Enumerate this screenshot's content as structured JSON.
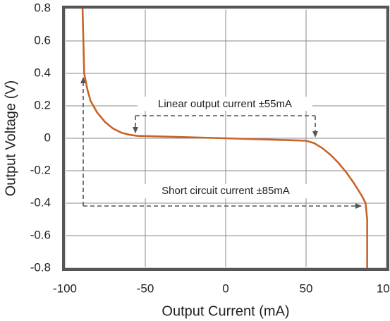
{
  "chart_data": {
    "type": "line",
    "x_label": "Output Current (mA)",
    "y_label": "Output Voltage (V)",
    "series": [
      {
        "color": "#c8642a",
        "x": [
          -89,
          -88,
          -86,
          -84,
          -80,
          -75,
          -70,
          -65,
          -60,
          -55,
          0,
          50,
          55,
          60,
          65,
          70,
          75,
          80,
          85,
          87,
          88,
          88
        ],
        "values": [
          0.8,
          0.4,
          0.3,
          0.23,
          0.16,
          0.1,
          0.06,
          0.035,
          0.022,
          0.015,
          0,
          -0.015,
          -0.03,
          -0.06,
          -0.1,
          -0.15,
          -0.21,
          -0.28,
          -0.36,
          -0.4,
          -0.5,
          -0.8
        ]
      }
    ],
    "annotations": [
      "Linear output current ±55mA",
      "Short circuit current ±85mA"
    ],
    "xlim": [
      -100,
      100
    ],
    "xticks": [
      -100,
      -50,
      0,
      50,
      100
    ],
    "ylim": [
      -0.8,
      0.8
    ],
    "yticks": [
      -0.8,
      -0.6,
      -0.4,
      -0.2,
      0,
      0.2,
      0.4,
      0.6,
      0.8
    ],
    "grid": true
  }
}
